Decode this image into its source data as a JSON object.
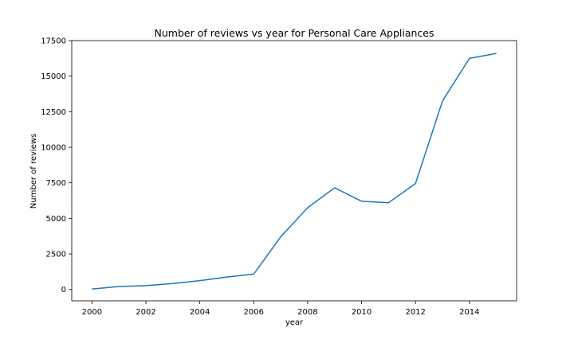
{
  "chart_data": {
    "type": "line",
    "title": "Number of reviews vs year for Personal Care Appliances",
    "xlabel": "year",
    "ylabel": "Number of reviews",
    "x": [
      2000,
      2001,
      2002,
      2003,
      2004,
      2005,
      2006,
      2007,
      2008,
      2009,
      2010,
      2011,
      2012,
      2013,
      2014,
      2015
    ],
    "series": [
      {
        "values": [
          30,
          210,
          270,
          420,
          620,
          870,
          1080,
          3700,
          5750,
          7150,
          6200,
          6100,
          7450,
          13250,
          16250,
          16600
        ]
      }
    ],
    "xlim": [
      1999.25,
      2015.75
    ],
    "ylim": [
      -800,
      17500
    ],
    "x_ticks": [
      "2000",
      "2002",
      "2004",
      "2006",
      "2008",
      "2010",
      "2012",
      "2014"
    ],
    "y_ticks": [
      "0",
      "2500",
      "5000",
      "7500",
      "10000",
      "12500",
      "15000",
      "17500"
    ],
    "grid": false,
    "line_color": "#1f77b4"
  }
}
